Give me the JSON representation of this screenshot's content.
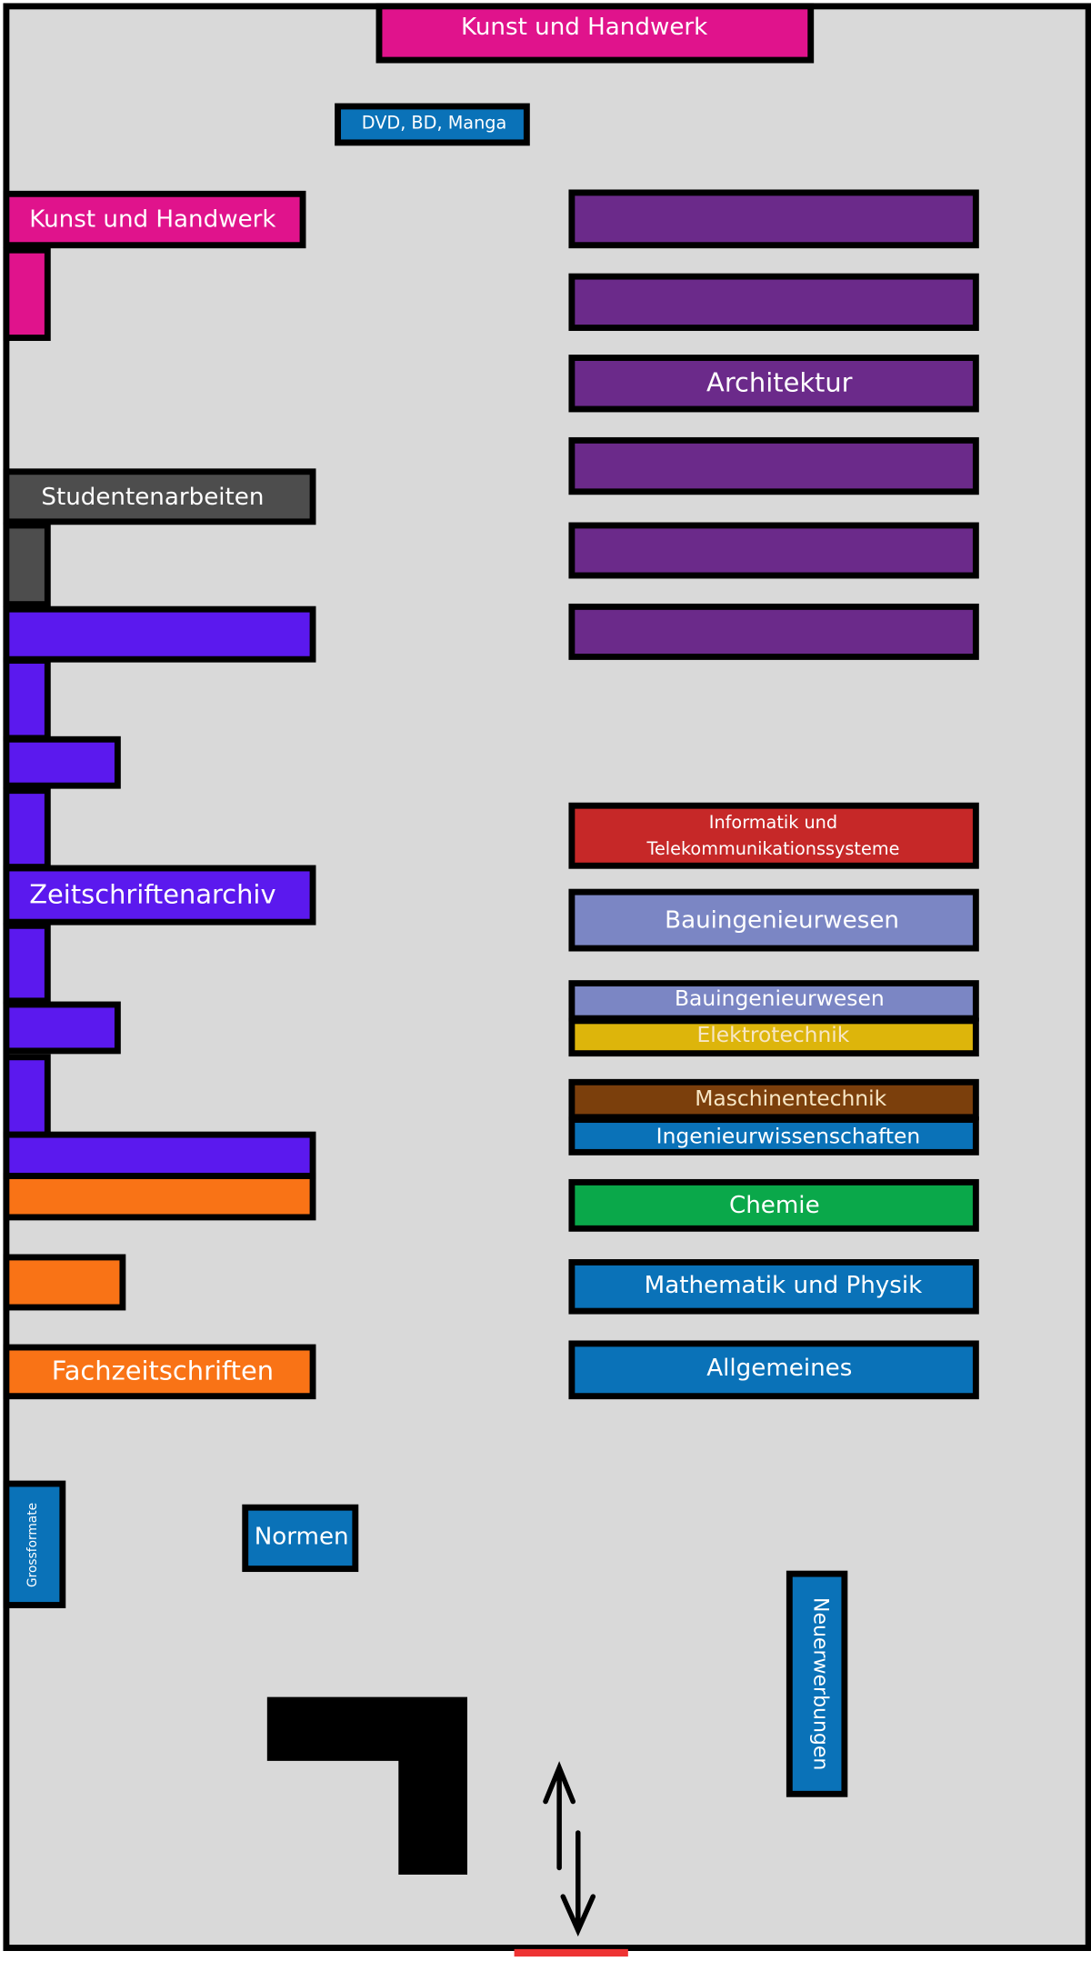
{
  "areas": {
    "top_art": "Kunst und Handwerk",
    "media": "DVD, BD, Manga",
    "left_art": "Kunst und Handwerk",
    "architecture": "Architektur",
    "student_works": "Studentenarbeiten",
    "journal_archive": "Zeitschriftenarchiv",
    "journals": "Fachzeitschriften",
    "informatics": [
      "Informatik und",
      "Telekommunikationssysteme"
    ],
    "civil_1": "Bauingenieurwesen",
    "civil_2": "Bauingenieurwesen",
    "electrical": "Elektrotechnik",
    "mechanical": "Maschinentechnik",
    "engineering": "Ingenieurwissenschaften",
    "chemistry": "Chemie",
    "math_physics": "Mathematik und Physik",
    "general": "Allgemeines",
    "large_formats": "Grossformate",
    "standards": "Normen",
    "new_acquisitions": "Neuerwerbungen"
  }
}
